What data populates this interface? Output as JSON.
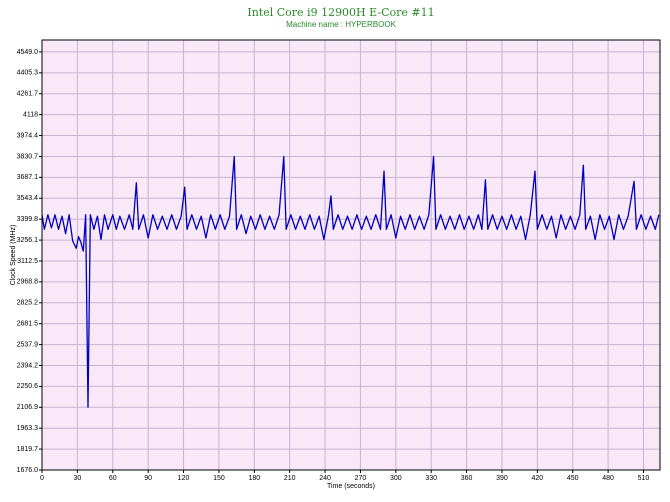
{
  "chart_data": {
    "type": "line",
    "title": "Intel Core i9 12900H E-Core #11",
    "subtitle": "Machine name : HYPERBOOK",
    "x_label": "Time (seconds)",
    "y_label": "Clock Speed (MHz)",
    "xlim": [
      0,
      524
    ],
    "ylim": [
      1676,
      4631
    ],
    "xticks": [
      0,
      30,
      60,
      90,
      120,
      150,
      180,
      210,
      240,
      270,
      300,
      330,
      360,
      390,
      420,
      450,
      480,
      510
    ],
    "yticks": [
      {
        "value": 1676,
        "label": "1676.0"
      },
      1819.7,
      1963.3,
      2106.9,
      2250.6,
      2394.2,
      2537.9,
      2681.5,
      2825.2,
      2968.8,
      3112.5,
      3256.1,
      3399.8,
      3543.4,
      3687.1,
      3830.7,
      3974.4,
      4118,
      4261.7,
      4405.3,
      {
        "value": 4549,
        "label": "4549.0"
      }
    ],
    "grid": true,
    "background": "#f8e8f8",
    "series": [
      {
        "color": "#0000c0",
        "x": [
          0,
          2,
          5,
          8,
          11,
          14,
          17,
          20,
          23,
          26,
          29,
          31,
          33,
          35,
          37,
          39,
          41,
          44,
          47,
          50,
          53,
          56,
          60,
          63,
          66,
          70,
          74,
          77,
          80,
          82,
          86,
          90,
          94,
          98,
          102,
          106,
          110,
          114,
          118,
          121,
          123,
          127,
          131,
          135,
          139,
          143,
          147,
          151,
          155,
          159,
          163,
          165,
          169,
          173,
          177,
          181,
          185,
          189,
          193,
          197,
          201,
          205,
          207,
          211,
          215,
          219,
          223,
          227,
          231,
          235,
          239,
          243,
          245,
          247,
          251,
          255,
          259,
          263,
          267,
          271,
          275,
          279,
          283,
          287,
          290,
          292,
          296,
          300,
          304,
          308,
          312,
          316,
          320,
          324,
          328,
          332,
          334,
          338,
          342,
          346,
          350,
          354,
          358,
          362,
          366,
          370,
          373,
          376,
          378,
          382,
          386,
          390,
          394,
          398,
          402,
          406,
          410,
          414,
          418,
          420,
          424,
          428,
          432,
          436,
          440,
          444,
          448,
          452,
          456,
          459,
          461,
          465,
          469,
          473,
          477,
          481,
          485,
          489,
          493,
          497,
          502,
          504,
          508,
          512,
          516,
          520,
          523
        ],
        "values": [
          3430,
          3330,
          3430,
          3340,
          3430,
          3330,
          3420,
          3300,
          3430,
          3250,
          3200,
          3280,
          3240,
          3180,
          3430,
          2107,
          3430,
          3330,
          3420,
          3260,
          3430,
          3330,
          3430,
          3330,
          3420,
          3330,
          3430,
          3330,
          3650,
          3330,
          3430,
          3270,
          3430,
          3330,
          3420,
          3330,
          3430,
          3330,
          3420,
          3620,
          3330,
          3430,
          3330,
          3420,
          3270,
          3430,
          3330,
          3430,
          3330,
          3420,
          3830,
          3330,
          3430,
          3300,
          3420,
          3330,
          3430,
          3330,
          3420,
          3330,
          3430,
          3830,
          3330,
          3430,
          3330,
          3420,
          3330,
          3430,
          3330,
          3420,
          3260,
          3430,
          3560,
          3330,
          3430,
          3330,
          3420,
          3330,
          3430,
          3330,
          3420,
          3330,
          3430,
          3330,
          3730,
          3330,
          3430,
          3270,
          3420,
          3330,
          3430,
          3330,
          3420,
          3330,
          3430,
          3830,
          3330,
          3430,
          3330,
          3420,
          3330,
          3430,
          3330,
          3420,
          3330,
          3430,
          3330,
          3670,
          3330,
          3430,
          3330,
          3420,
          3330,
          3430,
          3330,
          3420,
          3260,
          3430,
          3730,
          3330,
          3430,
          3330,
          3420,
          3270,
          3430,
          3330,
          3420,
          3330,
          3430,
          3770,
          3330,
          3420,
          3260,
          3430,
          3330,
          3420,
          3260,
          3430,
          3330,
          3420,
          3660,
          3330,
          3430,
          3330,
          3420,
          3330,
          3430
        ]
      }
    ]
  }
}
